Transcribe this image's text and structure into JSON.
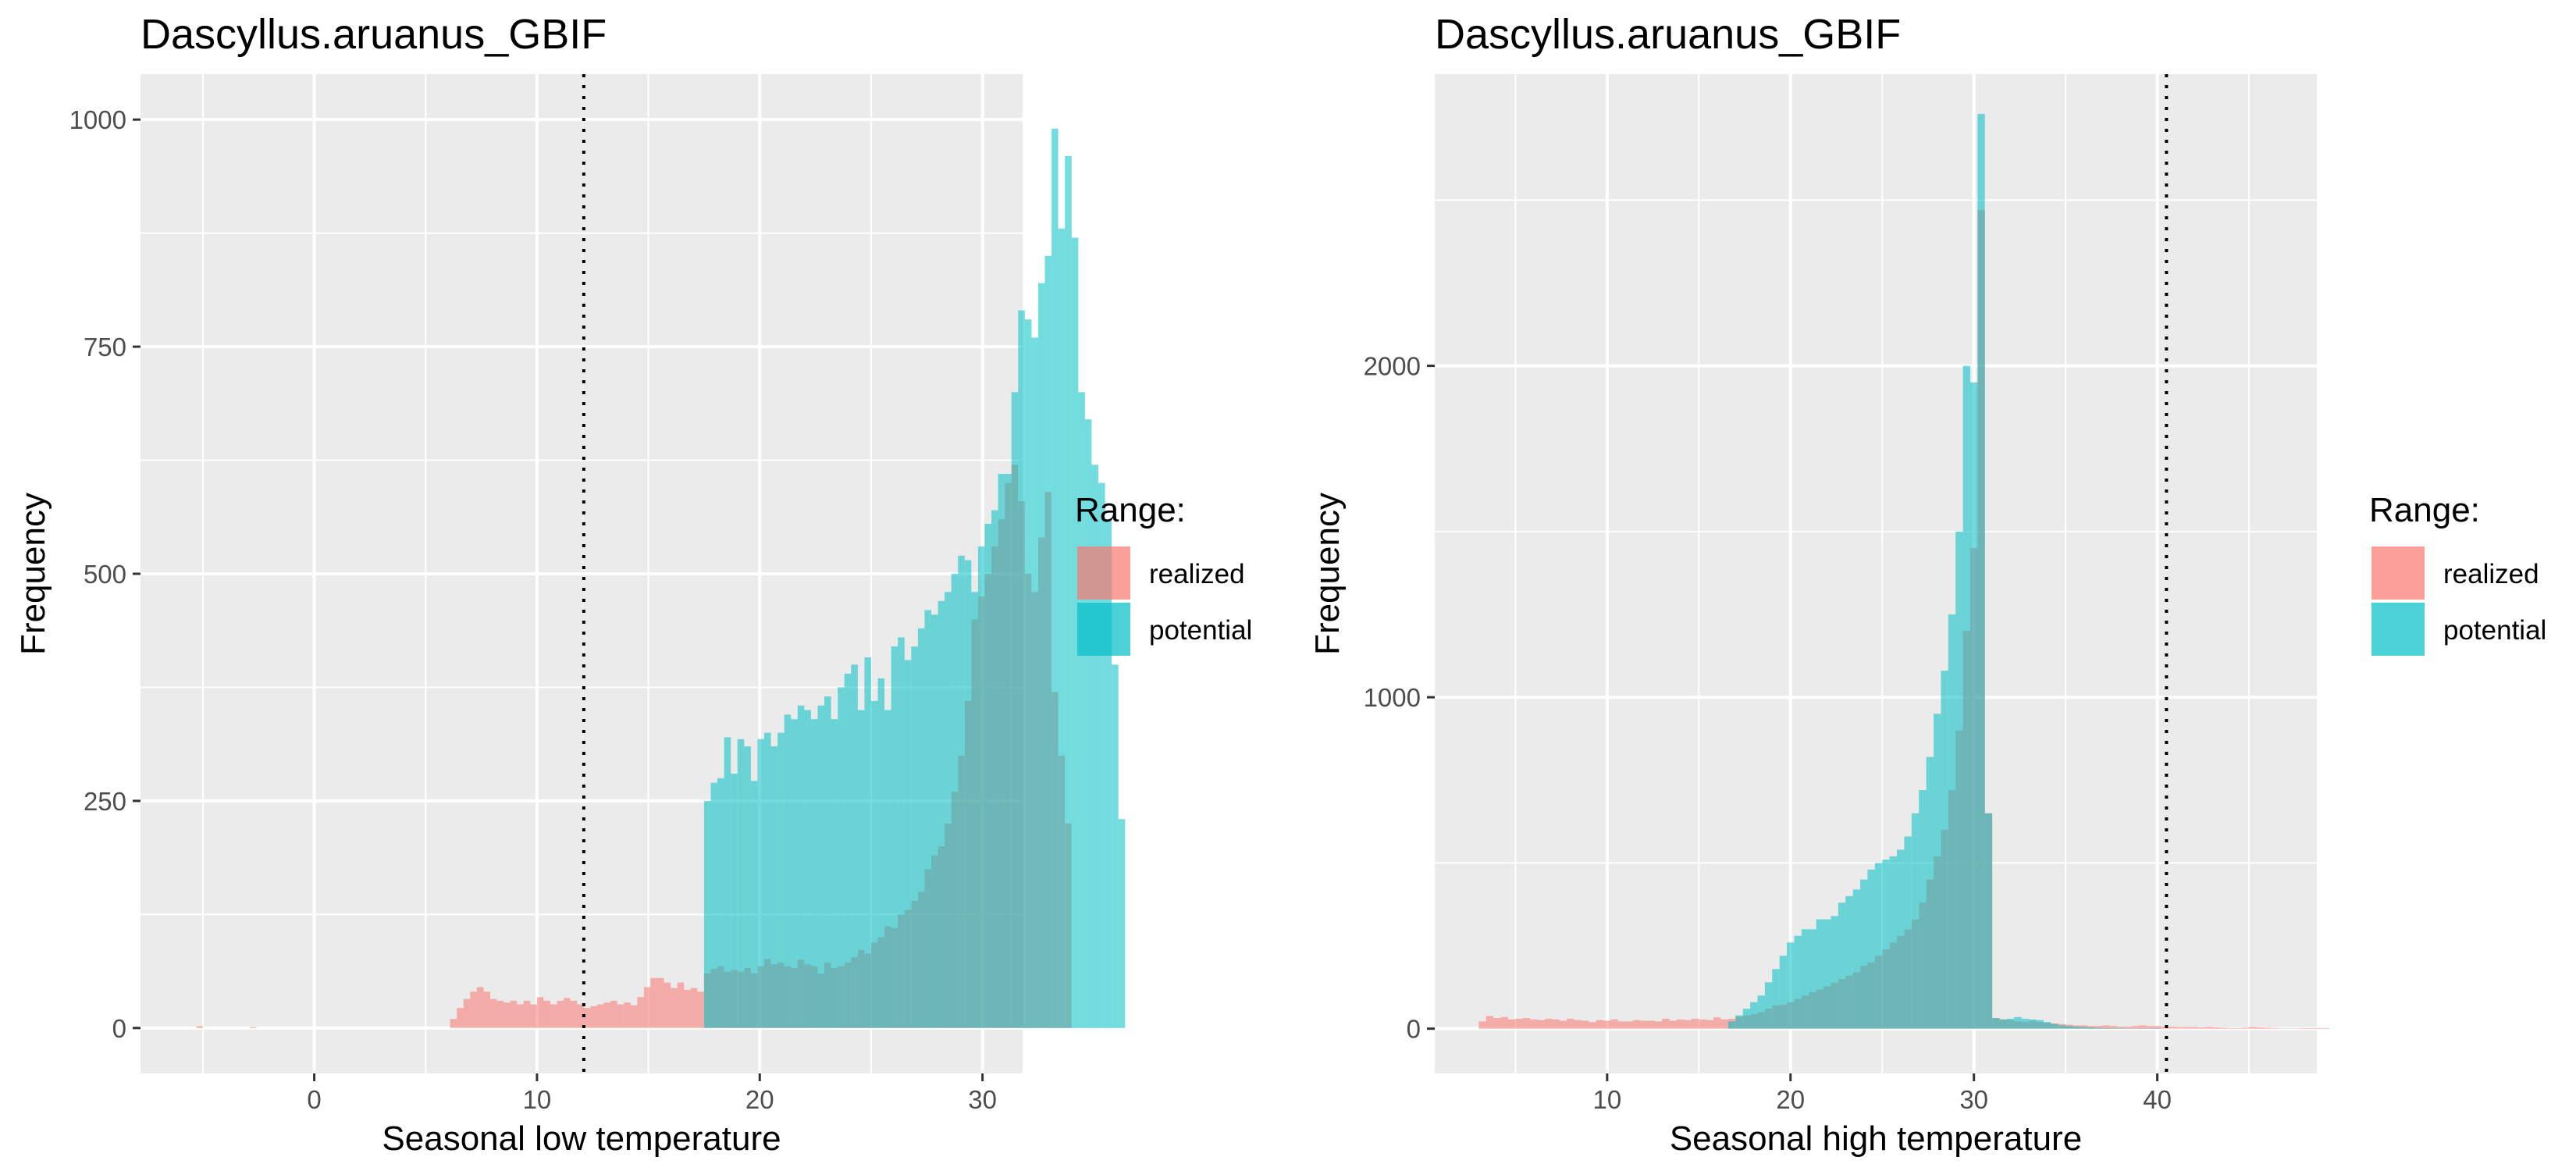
{
  "chart_data": [
    {
      "type": "bar",
      "subtype": "overlapping-histogram",
      "title": "Dascyllus.aruanus_GBIF",
      "xlabel": "Seasonal low temperature",
      "ylabel": "Frequency",
      "xlim": [
        -7.8,
        31.8
      ],
      "ylim": [
        -50,
        1050
      ],
      "xticks": [
        0,
        10,
        20,
        30
      ],
      "yticks": [
        0,
        250,
        500,
        750,
        1000
      ],
      "threshold_line": 12.1,
      "bin_width": 0.3,
      "bin_start": -6.2,
      "grid": true,
      "legend": {
        "title": "Range:",
        "placement": "right",
        "entries": [
          "realized",
          "potential"
        ]
      },
      "series": [
        {
          "name": "realized",
          "color": "#F8766D",
          "values": [
            0,
            0,
            0,
            2,
            0,
            0,
            0,
            0,
            0,
            0,
            0,
            1,
            0,
            0,
            0,
            0,
            0,
            0,
            0,
            0,
            0,
            0,
            0,
            0,
            0,
            0,
            0,
            0,
            0,
            0,
            0,
            0,
            0,
            0,
            0,
            0,
            0,
            0,
            0,
            0,
            0,
            10,
            22,
            32,
            40,
            45,
            40,
            32,
            30,
            28,
            30,
            26,
            30,
            26,
            34,
            30,
            26,
            30,
            33,
            30,
            26,
            22,
            24,
            26,
            28,
            30,
            26,
            28,
            25,
            34,
            45,
            55,
            55,
            50,
            44,
            50,
            42,
            44,
            40,
            60,
            65,
            68,
            62,
            64,
            62,
            66,
            60,
            68,
            76,
            70,
            72,
            68,
            66,
            75,
            70,
            68,
            60,
            72,
            66,
            68,
            72,
            78,
            86,
            82,
            94,
            100,
            112,
            110,
            125,
            130,
            140,
            150,
            175,
            190,
            200,
            225,
            260,
            300,
            360,
            450,
            475,
            500,
            530,
            560,
            600,
            620,
            580,
            500,
            480,
            540,
            590,
            370,
            300,
            225
          ]
        },
        {
          "name": "potential",
          "color": "#00BFC4",
          "values": [
            0,
            0,
            0,
            0,
            0,
            0,
            0,
            0,
            0,
            0,
            0,
            0,
            0,
            0,
            0,
            0,
            0,
            0,
            0,
            0,
            0,
            0,
            0,
            0,
            0,
            0,
            0,
            0,
            0,
            0,
            0,
            0,
            0,
            0,
            0,
            0,
            0,
            0,
            0,
            0,
            0,
            0,
            0,
            0,
            0,
            0,
            0,
            0,
            0,
            0,
            0,
            0,
            0,
            0,
            0,
            0,
            0,
            0,
            0,
            0,
            0,
            0,
            0,
            0,
            0,
            0,
            0,
            0,
            0,
            0,
            0,
            0,
            0,
            0,
            0,
            0,
            0,
            0,
            0,
            250,
            270,
            275,
            320,
            280,
            318,
            310,
            272,
            318,
            325,
            310,
            325,
            345,
            340,
            355,
            350,
            340,
            355,
            365,
            340,
            375,
            390,
            400,
            350,
            408,
            360,
            385,
            350,
            420,
            430,
            405,
            420,
            440,
            460,
            455,
            470,
            480,
            500,
            520,
            515,
            480,
            530,
            555,
            570,
            610,
            610,
            700,
            790,
            780,
            760,
            820,
            850,
            990,
            880,
            960,
            870,
            700,
            670,
            620,
            600,
            560,
            400,
            230
          ]
        }
      ]
    },
    {
      "type": "bar",
      "subtype": "overlapping-histogram",
      "title": "Dascyllus.aruanus_GBIF",
      "xlabel": "Seasonal high temperature",
      "ylabel": "Frequency",
      "xlim": [
        0.6,
        48.7
      ],
      "ylim": [
        -135,
        2880
      ],
      "xticks": [
        10,
        20,
        30,
        40
      ],
      "yticks": [
        0,
        1000,
        2000
      ],
      "threshold_line": 40.5,
      "bin_width": 0.4,
      "bin_start": 2.6,
      "grid": true,
      "legend": {
        "title": "Range:",
        "placement": "right",
        "entries": [
          "realized",
          "potential"
        ]
      },
      "series": [
        {
          "name": "realized",
          "color": "#F8766D",
          "values": [
            0,
            22,
            38,
            32,
            35,
            28,
            30,
            32,
            28,
            26,
            30,
            28,
            24,
            30,
            26,
            24,
            20,
            26,
            24,
            28,
            22,
            22,
            26,
            24,
            24,
            22,
            30,
            24,
            28,
            26,
            30,
            28,
            26,
            34,
            28,
            30,
            36,
            40,
            44,
            50,
            60,
            70,
            72,
            80,
            90,
            100,
            110,
            118,
            128,
            138,
            150,
            160,
            170,
            190,
            200,
            220,
            240,
            260,
            280,
            300,
            330,
            380,
            450,
            520,
            600,
            720,
            900,
            1200,
            1450,
            2470,
            650,
            32,
            28,
            26,
            22,
            20,
            24,
            20,
            18,
            16,
            14,
            12,
            10,
            10,
            8,
            8,
            10,
            8,
            6,
            6,
            8,
            10,
            8,
            8,
            6,
            6,
            5,
            5,
            5,
            4,
            5,
            4,
            3,
            2,
            2,
            3,
            5,
            4,
            3,
            2,
            1,
            1,
            1,
            2,
            2,
            2,
            2
          ]
        },
        {
          "name": "potential",
          "color": "#00BFC4",
          "values": [
            0,
            0,
            0,
            0,
            0,
            0,
            0,
            0,
            0,
            0,
            0,
            0,
            0,
            0,
            0,
            0,
            0,
            0,
            0,
            0,
            0,
            0,
            0,
            0,
            0,
            0,
            0,
            0,
            0,
            0,
            0,
            0,
            0,
            0,
            0,
            22,
            40,
            60,
            80,
            100,
            140,
            180,
            220,
            260,
            280,
            300,
            300,
            330,
            330,
            340,
            380,
            400,
            420,
            450,
            480,
            500,
            510,
            520,
            540,
            580,
            650,
            720,
            820,
            950,
            1080,
            1250,
            1500,
            2000,
            1950,
            2760,
            650,
            32,
            28,
            30,
            35,
            30,
            28,
            26,
            20,
            14,
            10,
            8,
            6,
            5,
            4,
            3,
            2,
            2,
            2,
            1,
            1,
            1,
            1,
            1,
            0,
            0,
            0,
            0,
            0,
            0,
            0,
            0,
            0,
            0,
            0,
            0,
            0,
            0,
            0,
            0,
            0,
            0,
            0,
            0,
            0,
            0,
            0
          ]
        }
      ]
    }
  ]
}
